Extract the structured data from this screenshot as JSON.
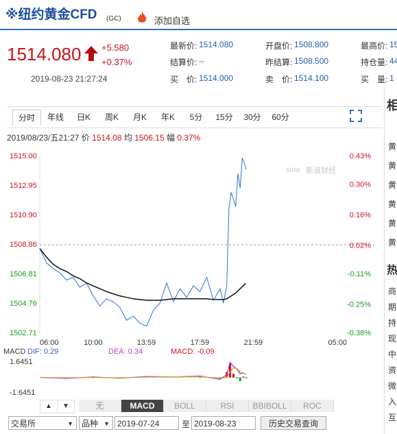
{
  "header": {
    "title": "※纽约黄金CFD",
    "code": "(GC)",
    "add": "添加自选"
  },
  "quote": {
    "price": "1514.080",
    "change": "+5.580",
    "pct": "+0.37%",
    "time": "2019-08-23 21:27:24",
    "fields": [
      [
        "最新价:",
        "1514.080"
      ],
      [
        "开盘价:",
        "1508.800"
      ],
      [
        "最高价:",
        "15"
      ],
      [
        "结算价:",
        "--"
      ],
      [
        "昨结算:",
        "1508.500"
      ],
      [
        "持仓量:",
        "44"
      ],
      [
        "买　价:",
        "1514.000"
      ],
      [
        "卖　价:",
        "1514.100"
      ],
      [
        "买　量:",
        "1"
      ]
    ]
  },
  "tabs": [
    "分时",
    "年线",
    "日K",
    "周K",
    "月K",
    "年K",
    "5分",
    "15分",
    "30分",
    "60分"
  ],
  "info": {
    "date": "2019/08/23/五21:27",
    "price_label": "价",
    "price": "1514.08",
    "avg_label": "均",
    "avg": "1506.15",
    "amp_label": "幅",
    "amp": "0.37%"
  },
  "chart_data": {
    "type": "line",
    "watermark": "新浪财经",
    "watermark_logo": "sina",
    "x": [
      "06:00",
      "06:30",
      "07:00",
      "07:30",
      "08:00",
      "08:30",
      "09:00",
      "09:30",
      "10:00",
      "10:30",
      "11:00",
      "11:30",
      "12:00",
      "12:30",
      "13:00",
      "13:30",
      "14:00",
      "14:30",
      "15:00",
      "15:30",
      "16:00",
      "16:30",
      "17:00",
      "17:30",
      "18:00",
      "18:30",
      "19:00",
      "19:30",
      "19:45",
      "20:00",
      "20:05",
      "20:10",
      "20:20",
      "20:40",
      "20:50",
      "21:00",
      "21:10",
      "21:20",
      "21:27"
    ],
    "series": [
      {
        "name": "价",
        "color": "#2a72d4",
        "values": [
          1508.6,
          1507.6,
          1507.2,
          1506.9,
          1506.4,
          1506.6,
          1505.9,
          1506.2,
          1505.3,
          1504.6,
          1505.1,
          1504.9,
          1504.5,
          1503.6,
          1503.9,
          1503.4,
          1503.2,
          1504.3,
          1504.8,
          1506.2,
          1504.9,
          1505.8,
          1505.2,
          1506.0,
          1505.6,
          1506.6,
          1505.0,
          1505.8,
          1504.8,
          1506.0,
          1508.8,
          1511.4,
          1512.5,
          1511.5,
          1513.8,
          1512.8,
          1514.9,
          1514.5,
          1514.08
        ]
      },
      {
        "name": "均",
        "color": "#111111",
        "values": [
          1508.6,
          1508.0,
          1507.5,
          1507.2,
          1507.0,
          1506.7,
          1506.5,
          1506.2,
          1506.0,
          1505.8,
          1505.6,
          1505.45,
          1505.3,
          1505.2,
          1505.1,
          1505.05,
          1505.0,
          1505.0,
          1505.0,
          1505.05,
          1505.1,
          1505.1,
          1505.1,
          1505.1,
          1505.1,
          1505.1,
          1505.05,
          1505.05,
          1505.05,
          1505.1,
          1505.15,
          1505.2,
          1505.3,
          1505.5,
          1505.65,
          1505.8,
          1505.95,
          1506.1,
          1506.15
        ]
      }
    ],
    "ylim": [
      1502.71,
      1515.0
    ],
    "yticks": [
      {
        "value": 1515.0,
        "label": "1515.00"
      },
      1512.95,
      {
        "value": 1510.9,
        "label": "1510.90"
      },
      1508.86,
      1506.81,
      1504.76,
      1502.71
    ],
    "y2lim": [
      -0.38,
      0.43
    ],
    "y2ticks": [
      {
        "value": 0.43,
        "label": "0.43%"
      },
      {
        "value": 0.3,
        "label": "0.30%"
      },
      {
        "value": 0.16,
        "label": "0.16%"
      },
      {
        "value": 0.02,
        "label": "0.02%"
      },
      {
        "value": -0.11,
        "label": "-0.11%"
      },
      {
        "value": -0.25,
        "label": "-0.25%"
      },
      {
        "value": -0.38,
        "label": "-0.38%"
      }
    ],
    "xlim": [
      "06:00",
      "05:00"
    ],
    "xticks": [
      "06:00",
      "10:00",
      "13:59",
      "17:59",
      "21:59",
      "05:00"
    ]
  },
  "macd": {
    "title": "MACD",
    "dif_label": "DIF: 0.29",
    "dea_label": "DEA: 0.34",
    "macd_label": "MACD: -0.09",
    "ylim": [
      -1.6451,
      1.6451
    ],
    "yticks": [
      1.6451,
      -1.6451
    ],
    "x": [
      "06:00",
      "08:00",
      "10:00",
      "12:00",
      "14:00",
      "16:00",
      "18:00",
      "19:30",
      "20:00",
      "20:15",
      "20:30",
      "20:45",
      "21:00",
      "21:15",
      "21:27"
    ],
    "series": [
      {
        "name": "DIF",
        "color": "#9b30d0",
        "values": [
          0,
          -0.1,
          0.05,
          -0.08,
          0.1,
          0.05,
          0.15,
          -0.2,
          0.3,
          1.6,
          1.2,
          0.9,
          0.4,
          0.5,
          0.29
        ]
      },
      {
        "name": "DEA",
        "color": "#e0a020",
        "values": [
          0,
          -0.05,
          0,
          -0.05,
          0.05,
          0.05,
          0.1,
          -0.1,
          0,
          0.6,
          1.0,
          0.95,
          0.6,
          0.45,
          0.34
        ]
      }
    ],
    "bars": [
      0,
      -0.1,
      0.1,
      -0.06,
      0.1,
      0,
      0.1,
      -0.2,
      0.6,
      1.5,
      0.4,
      -0.1,
      -0.4,
      0.1,
      -0.09
    ]
  },
  "indicators": [
    "无",
    "MACD",
    "BOLL",
    "RSI",
    "BBIBOLL",
    "ROC"
  ],
  "query": {
    "exchange": "交易所",
    "variety": "品种",
    "from": "2019-07-24",
    "to_label": "至",
    "to": "2019-08-23",
    "button": "历史交易查询"
  },
  "sidebar": {
    "heading1": "相",
    "rows1": [
      "黄",
      "黄",
      "黄",
      "黄",
      "黄",
      "黄"
    ],
    "heading2": "热",
    "rows2": [
      "商",
      "期",
      "持",
      "现",
      "中",
      "资",
      "微",
      "入",
      "互"
    ]
  }
}
